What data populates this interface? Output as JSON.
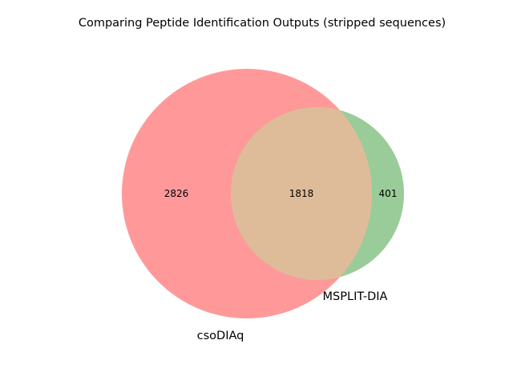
{
  "title": "Comparing Peptide Identification Outputs (stripped sequences)",
  "sets": [
    {
      "name": "csoDIAq",
      "only_count": "2826",
      "color": "#ff7f7f"
    },
    {
      "name": "MSPLIT-DIA",
      "only_count": "401",
      "color": "#7fbf7f"
    }
  ],
  "intersection": {
    "count": "1818",
    "color": "#dfbc99"
  }
}
